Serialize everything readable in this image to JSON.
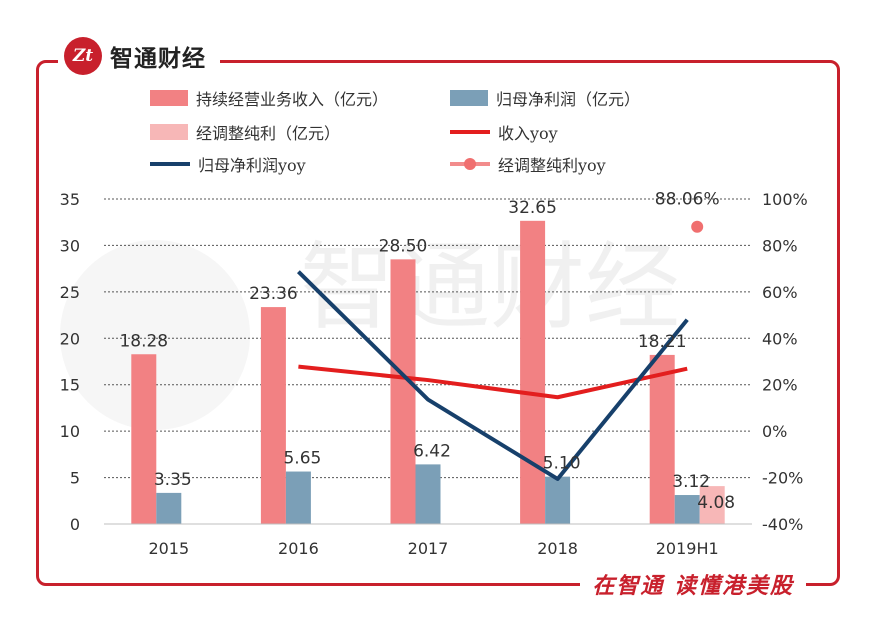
{
  "brand": {
    "name": "智通财经",
    "logo_text": "Zt"
  },
  "footer": {
    "slogan": "在智通  读懂港美股"
  },
  "watermark": {
    "text": "智通财经"
  },
  "chart_data": {
    "type": "bar",
    "categories": [
      "2015",
      "2016",
      "2017",
      "2018",
      "2019H1"
    ],
    "ylim": [
      0,
      35
    ],
    "y_ticks": [
      0,
      5,
      10,
      15,
      20,
      25,
      30,
      35
    ],
    "y2lim": [
      -40,
      100
    ],
    "y2_ticks": [
      -40,
      -20,
      0,
      20,
      40,
      60,
      80,
      100
    ],
    "y2_tick_labels": [
      "-40%",
      "-20%",
      "0%",
      "20%",
      "40%",
      "60%",
      "80%",
      "100%"
    ],
    "grid": true,
    "series": [
      {
        "name": "持续经营业务收入（亿元）",
        "type": "bar",
        "axis": "left",
        "color": "#f28183",
        "values": [
          18.28,
          23.36,
          28.5,
          32.65,
          18.21
        ],
        "labels": [
          "18.28",
          "23.36",
          "28.50",
          "32.65",
          "18.21"
        ]
      },
      {
        "name": "归母净利润（亿元）",
        "type": "bar",
        "axis": "left",
        "color": "#7b9fb7",
        "values": [
          3.35,
          5.65,
          6.42,
          5.1,
          3.12
        ],
        "labels": [
          "3.35",
          "5.65",
          "6.42",
          "5.10",
          "3.12"
        ]
      },
      {
        "name": "经调整纯利（亿元）",
        "type": "bar",
        "axis": "left",
        "color": "#f7b7b7",
        "values": [
          null,
          null,
          null,
          null,
          4.08
        ],
        "labels": [
          "",
          "",
          "",
          "",
          "4.08"
        ]
      },
      {
        "name": "收入yoy",
        "type": "line",
        "axis": "right",
        "color": "#e31e1e",
        "values": [
          null,
          27.8,
          22.0,
          14.6,
          26.9
        ]
      },
      {
        "name": "归母净利润yoy",
        "type": "line",
        "axis": "right",
        "color": "#17406b",
        "values": [
          null,
          68.7,
          13.6,
          -20.6,
          48.0
        ]
      },
      {
        "name": "经调整纯利yoy",
        "type": "point",
        "axis": "right",
        "color": "#f06f6f",
        "values": [
          null,
          null,
          null,
          null,
          88.06
        ],
        "label": "88.06%"
      }
    ]
  }
}
